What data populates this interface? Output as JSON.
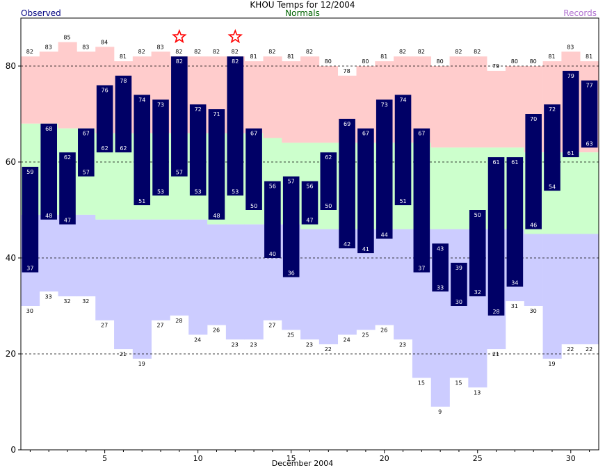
{
  "header": {
    "title": "KHOU Temps for 12/2004",
    "observed_label": "Observed",
    "normals_label": "Normals",
    "records_label": "Records"
  },
  "chart_data": {
    "type": "bar",
    "title": "KHOU Temps for 12/2004",
    "xlabel": "December 2004",
    "ylabel": "",
    "ylim": [
      0,
      90
    ],
    "xlim": [
      0.5,
      31.5
    ],
    "yticks": [
      0,
      20,
      40,
      60,
      80
    ],
    "xticks": [
      5,
      10,
      15,
      20,
      25,
      30
    ],
    "grid": "dashed horizontal at 20, 40, 60, 80",
    "legend": "top: Observed (left), Normals (center), Records (right)",
    "days": [
      1,
      2,
      3,
      4,
      5,
      6,
      7,
      8,
      9,
      10,
      11,
      12,
      13,
      14,
      15,
      16,
      17,
      18,
      19,
      20,
      21,
      22,
      23,
      24,
      25,
      26,
      27,
      28,
      29,
      30,
      31
    ],
    "series": [
      {
        "name": "Observed",
        "role": "high",
        "values": [
          59,
          68,
          62,
          67,
          76,
          78,
          74,
          73,
          82,
          72,
          71,
          82,
          67,
          56,
          57,
          56,
          62,
          69,
          67,
          73,
          74,
          67,
          43,
          39,
          50,
          61,
          61,
          70,
          72,
          79,
          77
        ]
      },
      {
        "name": "Observed",
        "role": "low",
        "values": [
          37,
          48,
          47,
          57,
          62,
          62,
          51,
          53,
          57,
          53,
          48,
          53,
          50,
          40,
          36,
          47,
          50,
          42,
          41,
          44,
          51,
          37,
          33,
          30,
          32,
          28,
          34,
          46,
          54,
          61,
          63
        ]
      },
      {
        "name": "Normals",
        "role": "high",
        "values": [
          68,
          68,
          67,
          67,
          66,
          66,
          66,
          66,
          66,
          66,
          66,
          66,
          66,
          65,
          64,
          64,
          64,
          64,
          64,
          64,
          64,
          64,
          63,
          63,
          63,
          63,
          63,
          62,
          62,
          62,
          62
        ]
      },
      {
        "name": "Normals",
        "role": "low",
        "values": [
          49,
          49,
          49,
          49,
          48,
          48,
          48,
          48,
          48,
          48,
          47,
          47,
          47,
          47,
          47,
          46,
          46,
          46,
          46,
          46,
          46,
          46,
          46,
          46,
          46,
          46,
          46,
          45,
          45,
          45,
          45
        ]
      },
      {
        "name": "Records",
        "role": "high",
        "values": [
          82,
          83,
          85,
          83,
          84,
          81,
          82,
          83,
          82,
          82,
          82,
          82,
          81,
          82,
          81,
          82,
          80,
          78,
          80,
          81,
          82,
          82,
          80,
          82,
          82,
          79,
          80,
          80,
          81,
          83,
          81
        ]
      },
      {
        "name": "Records",
        "role": "low",
        "values": [
          30,
          33,
          32,
          32,
          27,
          21,
          19,
          27,
          28,
          24,
          26,
          23,
          23,
          27,
          25,
          23,
          22,
          24,
          25,
          26,
          23,
          15,
          9,
          15,
          13,
          21,
          31,
          30,
          19,
          22,
          22
        ]
      }
    ],
    "record_markers": [
      9,
      12
    ],
    "colors": {
      "observed_bar": "#000066",
      "record_high_band": "#ffcccc",
      "normal_band": "#ccffcc",
      "record_low_band": "#ccccff",
      "star": "#ff0000",
      "observed_text": "#000080",
      "normals_text": "#006400",
      "records_text": "#b070d0"
    }
  }
}
